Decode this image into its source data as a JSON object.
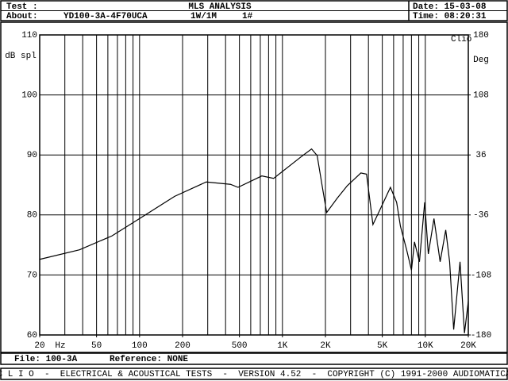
{
  "header": {
    "test_label": "Test :",
    "title": "MLS ANALYSIS",
    "date": "Date: 15-03-08",
    "about_label": "About:",
    "about": "YD100-3A-4F70UCA",
    "level": "1W/1M",
    "sample": "1#",
    "time": "Time: 08:20:31"
  },
  "chart_data": {
    "type": "line",
    "brand": "Clio",
    "ylabel": "dB spl",
    "y2label": "Deg",
    "xlabel": "Hz",
    "log_x": true,
    "grid": true,
    "color": "#000000",
    "xlim": [
      20,
      20000
    ],
    "ylim": [
      60,
      110
    ],
    "y2lim": [
      -180,
      180
    ],
    "xticks": [
      20,
      50,
      100,
      200,
      500,
      {
        "value": 1000,
        "label": "1K"
      },
      {
        "value": 2000,
        "label": "2K"
      },
      {
        "value": 5000,
        "label": "5K"
      },
      {
        "value": 10000,
        "label": "10K"
      },
      {
        "value": 20000,
        "label": "20K"
      }
    ],
    "xgrid": [
      30,
      40,
      50,
      60,
      70,
      80,
      90,
      100,
      200,
      300,
      400,
      500,
      600,
      700,
      800,
      900,
      1000,
      2000,
      3000,
      4000,
      5000,
      6000,
      7000,
      8000,
      9000,
      10000
    ],
    "yticks": [
      60,
      70,
      80,
      90,
      100,
      110
    ],
    "y2ticks": [
      -180,
      -108,
      -36,
      36,
      108,
      180
    ],
    "x": [
      20,
      38,
      64,
      100,
      176,
      293,
      433,
      489,
      717,
      868,
      1370,
      1600,
      1750,
      1920,
      2040,
      2420,
      2850,
      3100,
      3540,
      3880,
      4300,
      4800,
      5700,
      6300,
      6700,
      7400,
      8000,
      8400,
      9100,
      9900,
      10500,
      11500,
      12700,
      13900,
      14800,
      15800,
      17500,
      18800,
      20000
    ],
    "values": [
      72.6,
      74.2,
      76.5,
      79.4,
      83.1,
      85.5,
      85.1,
      84.6,
      86.5,
      86.1,
      89.8,
      91.0,
      89.9,
      84.1,
      80.4,
      82.8,
      84.9,
      85.7,
      87.0,
      86.8,
      78.4,
      80.8,
      84.6,
      82.1,
      78.1,
      74.2,
      70.8,
      75.5,
      72.2,
      82.1,
      73.5,
      79.4,
      72.2,
      77.5,
      72.2,
      60.9,
      72.2,
      60.3,
      65.6
    ]
  },
  "footer": {
    "file": "File: 100-3A",
    "reference": "Reference: NONE",
    "banner": "C L I O  -  ELECTRICAL & ACOUSTICAL TESTS  -  VERSION 4.52  -  COPYRIGHT (C) 1991-2000 AUDIOMATICA"
  }
}
